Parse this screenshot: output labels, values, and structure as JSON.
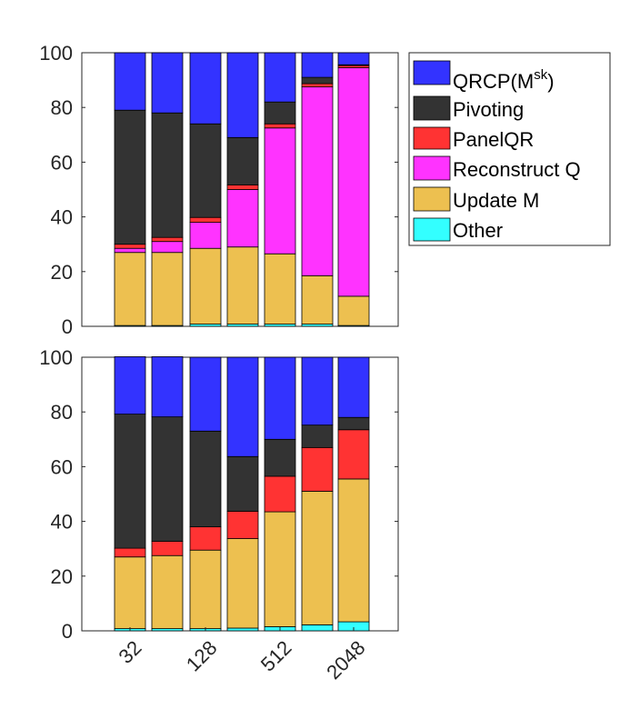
{
  "chart_data": [
    {
      "type": "bar",
      "stacked": true,
      "ylim": [
        0,
        100
      ],
      "yticks": [
        0,
        20,
        40,
        60,
        80,
        100
      ],
      "grid": false,
      "legend_position": "right",
      "series": [
        {
          "name": "Other",
          "color": "#33ffff",
          "values": [
            0.3,
            0.3,
            0.8,
            0.8,
            0.8,
            0.8,
            0.3
          ]
        },
        {
          "name": "Update M",
          "color": "#edc050",
          "values": [
            26.7,
            26.7,
            27.7,
            28.2,
            25.7,
            17.7,
            10.7
          ]
        },
        {
          "name": "Reconstruct Q",
          "color": "#ff33ff",
          "values": [
            1.5,
            4.0,
            9.5,
            21.0,
            46.0,
            69.0,
            83.5
          ]
        },
        {
          "name": "PanelQR",
          "color": "#ff3333",
          "values": [
            1.5,
            1.5,
            1.8,
            1.7,
            1.5,
            1.2,
            0.8
          ]
        },
        {
          "name": "Pivoting",
          "color": "#333333",
          "values": [
            49.0,
            45.5,
            34.2,
            17.3,
            8.0,
            2.3,
            0.3
          ]
        },
        {
          "name": "QRCP(M^sk)",
          "color": "#3333ff",
          "values": [
            21.0,
            22.0,
            26.0,
            31.0,
            18.0,
            9.0,
            4.4
          ]
        }
      ]
    },
    {
      "type": "bar",
      "stacked": true,
      "ylim": [
        0,
        100
      ],
      "yticks": [
        0,
        20,
        40,
        60,
        80,
        100
      ],
      "grid": false,
      "xtick_labels": [
        "32",
        "128",
        "512",
        "2048"
      ],
      "xtick_positions": [
        1,
        3,
        5,
        7
      ],
      "series": [
        {
          "name": "Other",
          "color": "#33ffff",
          "values": [
            0.8,
            0.8,
            0.8,
            1.0,
            1.5,
            2.2,
            3.3
          ]
        },
        {
          "name": "Update M",
          "color": "#edc050",
          "values": [
            26.2,
            26.7,
            28.7,
            32.7,
            42.0,
            48.8,
            52.2
          ]
        },
        {
          "name": "Reconstruct Q",
          "color": "#ff33ff",
          "values": [
            0,
            0,
            0,
            0,
            0,
            0,
            0
          ]
        },
        {
          "name": "PanelQR",
          "color": "#ff3333",
          "values": [
            3.2,
            5.2,
            8.5,
            10.0,
            13.0,
            16.0,
            18.0
          ]
        },
        {
          "name": "Pivoting",
          "color": "#333333",
          "values": [
            49.0,
            45.5,
            35.0,
            20.0,
            13.5,
            8.2,
            4.5
          ]
        },
        {
          "name": "QRCP(M^sk)",
          "color": "#3333ff",
          "values": [
            21.0,
            22.0,
            27.0,
            36.3,
            30.0,
            24.8,
            22.0
          ]
        }
      ]
    }
  ],
  "legend": {
    "items": [
      {
        "label": "QRCP(M",
        "sup": "sk",
        "suffix": ")",
        "color": "#3333ff"
      },
      {
        "label": "Pivoting",
        "color": "#333333"
      },
      {
        "label": "PanelQR",
        "color": "#ff3333"
      },
      {
        "label": "Reconstruct Q",
        "color": "#ff33ff"
      },
      {
        "label": "Update M",
        "color": "#edc050"
      },
      {
        "label": "Other",
        "color": "#33ffff"
      }
    ]
  }
}
